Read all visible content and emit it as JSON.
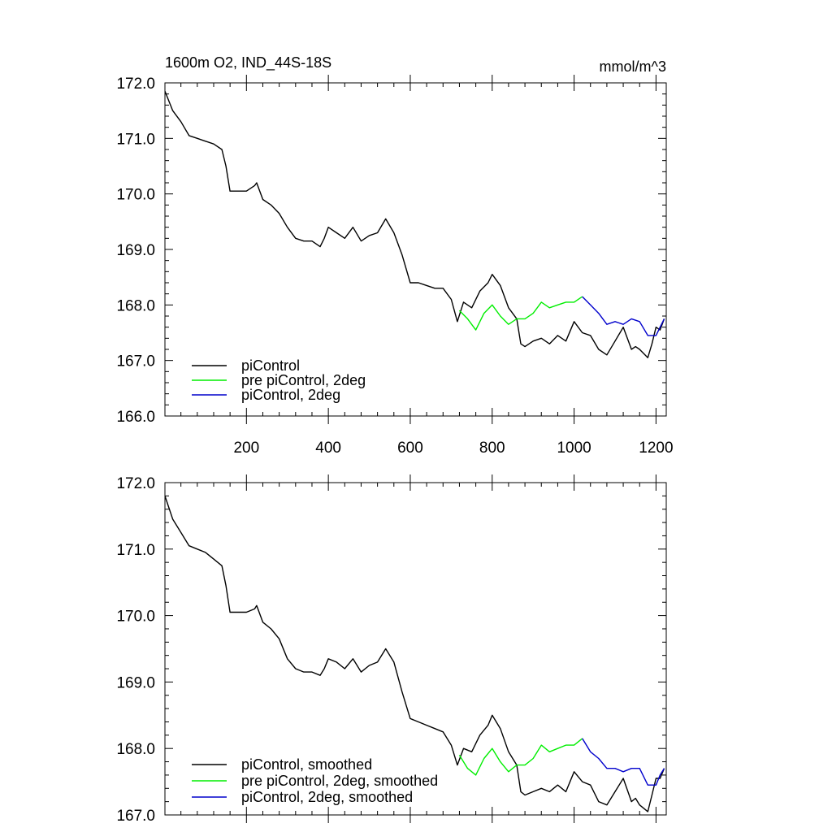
{
  "page": {
    "title_left": "1600m O2, IND_44S-18S",
    "title_right": "mmol/m^3"
  },
  "colors": {
    "piControl": "#000000",
    "pre_piControl_2deg": "#00ee00",
    "piControl_2deg": "#0000cc"
  },
  "chart_data": [
    {
      "type": "line",
      "panel": "top",
      "title": "1600m O2, IND_44S-18S",
      "units": "mmol/m^3",
      "xlim": [
        1,
        1225
      ],
      "ylim": [
        166.0,
        172.0
      ],
      "xticks": [
        200,
        400,
        600,
        800,
        1000,
        1200
      ],
      "xtick_labels": [
        "200",
        "400",
        "600",
        "800",
        "1000",
        "1200"
      ],
      "yticks": [
        166.0,
        167.0,
        168.0,
        169.0,
        170.0,
        171.0,
        172.0
      ],
      "ytick_labels": [
        "166.0",
        "167.0",
        "168.0",
        "169.0",
        "170.0",
        "171.0",
        "172.0"
      ],
      "legend": [
        "piControl",
        "pre piControl, 2deg",
        "piControl, 2deg"
      ],
      "legend_position": "bottom-left",
      "series": [
        {
          "name": "piControl",
          "color": "#000000",
          "x": [
            1,
            20,
            40,
            60,
            80,
            100,
            120,
            140,
            150,
            160,
            180,
            200,
            220,
            225,
            240,
            260,
            280,
            300,
            320,
            340,
            360,
            380,
            390,
            400,
            420,
            440,
            460,
            480,
            500,
            520,
            540,
            560,
            580,
            600,
            620,
            640,
            660,
            680,
            700,
            715,
            730,
            750,
            770,
            790,
            800,
            820,
            840,
            860,
            870,
            880,
            900,
            920,
            940,
            960,
            980,
            1000,
            1020,
            1040,
            1060,
            1080,
            1100,
            1120,
            1140,
            1150,
            1160,
            1180,
            1190,
            1200,
            1210,
            1220
          ],
          "values": [
            171.85,
            171.5,
            171.3,
            171.05,
            171.0,
            170.95,
            170.9,
            170.8,
            170.5,
            170.05,
            170.05,
            170.05,
            170.15,
            170.2,
            169.9,
            169.8,
            169.65,
            169.4,
            169.2,
            169.15,
            169.15,
            169.05,
            169.2,
            169.4,
            169.3,
            169.2,
            169.4,
            169.15,
            169.25,
            169.3,
            169.55,
            169.3,
            168.9,
            168.4,
            168.4,
            168.35,
            168.3,
            168.3,
            168.1,
            167.7,
            168.05,
            167.95,
            168.25,
            168.4,
            168.55,
            168.35,
            167.95,
            167.75,
            167.3,
            167.25,
            167.35,
            167.4,
            167.3,
            167.45,
            167.35,
            167.7,
            167.5,
            167.45,
            167.2,
            167.1,
            167.35,
            167.6,
            167.2,
            167.25,
            167.2,
            167.05,
            167.3,
            167.6,
            167.55,
            167.75
          ]
        },
        {
          "name": "pre piControl, 2deg",
          "color": "#00ee00",
          "x": [
            720,
            740,
            760,
            780,
            800,
            820,
            840,
            860,
            880,
            900,
            920,
            940,
            960,
            980,
            1000,
            1020
          ],
          "values": [
            167.9,
            167.75,
            167.55,
            167.85,
            168.0,
            167.8,
            167.65,
            167.75,
            167.75,
            167.85,
            168.05,
            167.95,
            168.0,
            168.05,
            168.05,
            168.15
          ]
        },
        {
          "name": "piControl, 2deg",
          "color": "#0000cc",
          "x": [
            1020,
            1040,
            1060,
            1080,
            1100,
            1120,
            1140,
            1160,
            1180,
            1200,
            1210,
            1220
          ],
          "values": [
            168.15,
            168.0,
            167.85,
            167.65,
            167.7,
            167.65,
            167.75,
            167.7,
            167.45,
            167.45,
            167.6,
            167.75
          ]
        }
      ]
    },
    {
      "type": "line",
      "panel": "bottom",
      "title": "",
      "xlim": [
        1,
        1225
      ],
      "ylim": [
        167.0,
        172.0
      ],
      "yticks": [
        167.0,
        168.0,
        169.0,
        170.0,
        171.0,
        172.0
      ],
      "ytick_labels": [
        "167.0",
        "168.0",
        "169.0",
        "170.0",
        "171.0",
        "172.0"
      ],
      "legend": [
        "piControl, smoothed",
        "pre piControl, 2deg, smoothed",
        "piControl, 2deg, smoothed"
      ],
      "legend_position": "bottom-left",
      "series": [
        {
          "name": "piControl, smoothed",
          "color": "#000000",
          "x": [
            1,
            20,
            40,
            60,
            80,
            100,
            120,
            140,
            150,
            160,
            180,
            200,
            220,
            225,
            240,
            260,
            280,
            300,
            320,
            340,
            360,
            380,
            390,
            400,
            420,
            440,
            460,
            480,
            500,
            520,
            540,
            560,
            580,
            600,
            620,
            640,
            660,
            680,
            700,
            715,
            730,
            750,
            770,
            790,
            800,
            820,
            840,
            860,
            870,
            880,
            900,
            920,
            940,
            960,
            980,
            1000,
            1020,
            1040,
            1060,
            1080,
            1100,
            1120,
            1140,
            1150,
            1160,
            1180,
            1190,
            1200,
            1210,
            1220
          ],
          "values": [
            171.8,
            171.45,
            171.25,
            171.05,
            171.0,
            170.95,
            170.85,
            170.75,
            170.45,
            170.05,
            170.05,
            170.05,
            170.1,
            170.15,
            169.9,
            169.8,
            169.65,
            169.35,
            169.2,
            169.15,
            169.15,
            169.1,
            169.2,
            169.35,
            169.3,
            169.2,
            169.35,
            169.15,
            169.25,
            169.3,
            169.5,
            169.3,
            168.85,
            168.45,
            168.4,
            168.35,
            168.3,
            168.25,
            168.05,
            167.75,
            168.0,
            167.95,
            168.2,
            168.35,
            168.5,
            168.3,
            167.95,
            167.75,
            167.35,
            167.3,
            167.35,
            167.4,
            167.35,
            167.45,
            167.35,
            167.65,
            167.5,
            167.45,
            167.2,
            167.15,
            167.35,
            167.55,
            167.2,
            167.25,
            167.15,
            167.05,
            167.3,
            167.55,
            167.55,
            167.7
          ]
        },
        {
          "name": "pre piControl, 2deg, smoothed",
          "color": "#00ee00",
          "x": [
            720,
            740,
            760,
            780,
            800,
            820,
            840,
            860,
            880,
            900,
            920,
            940,
            960,
            980,
            1000,
            1020
          ],
          "values": [
            167.9,
            167.7,
            167.6,
            167.85,
            168.0,
            167.8,
            167.65,
            167.75,
            167.75,
            167.85,
            168.05,
            167.95,
            168.0,
            168.05,
            168.05,
            168.15
          ]
        },
        {
          "name": "piControl, 2deg, smoothed",
          "color": "#0000cc",
          "x": [
            1020,
            1040,
            1060,
            1080,
            1100,
            1120,
            1140,
            1160,
            1180,
            1200,
            1210,
            1220
          ],
          "values": [
            168.15,
            167.95,
            167.85,
            167.7,
            167.7,
            167.65,
            167.7,
            167.7,
            167.45,
            167.45,
            167.6,
            167.7
          ]
        }
      ]
    }
  ]
}
